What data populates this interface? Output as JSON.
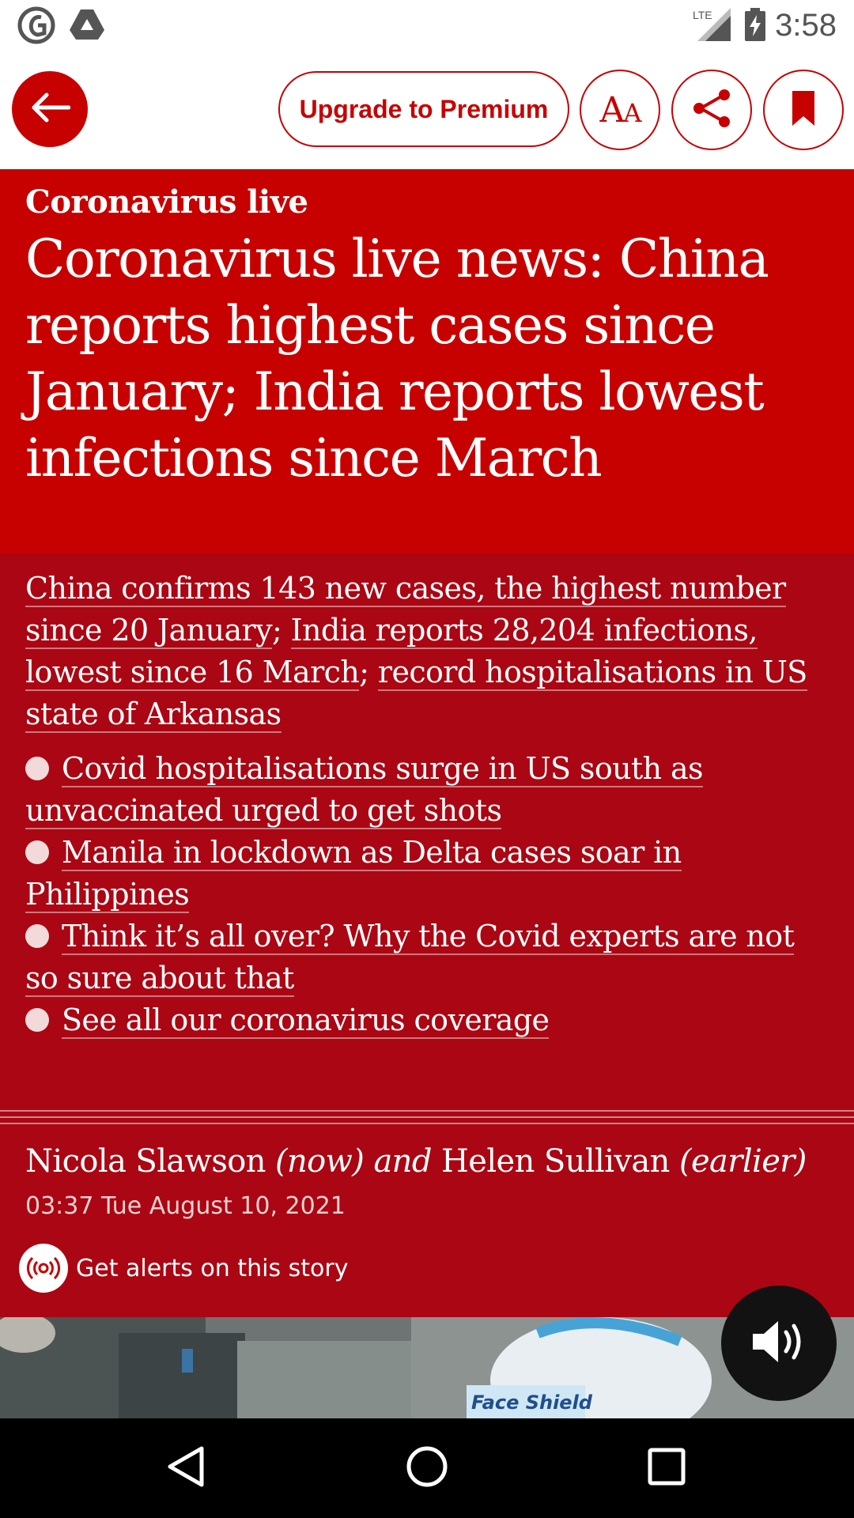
{
  "status_bar": {
    "time": "3:58",
    "network": "LTE",
    "icons": [
      "guardian-app-icon",
      "drive-icon",
      "lte-signal-icon",
      "battery-charging-icon"
    ]
  },
  "toolbar": {
    "back_icon": "arrow-left-icon",
    "premium_label": "Upgrade to Premium",
    "text_size_icon": "text-size-icon",
    "share_icon": "share-icon",
    "bookmark_icon": "bookmark-icon"
  },
  "article": {
    "kicker": "Coronavirus live",
    "headline": "Coronavirus live news: China reports highest cases since January; India reports lowest infections since March",
    "standfirst": {
      "link1": "China confirms 143 new cases, the highest number since 20 January",
      "sep1": "; ",
      "link2": "India reports 28,204 infections, lowest since 16 March",
      "sep2": "; ",
      "link3": "record hospitalisations in US state of Arkansas"
    },
    "bullets": [
      "Covid hospitalisations surge in US south as unvaccinated urged to get shots",
      "Manila in lockdown as Delta cases soar in Philippines",
      "Think it’s all over? Why the Covid experts are not so sure about that",
      "See all our coronavirus coverage"
    ],
    "byline": {
      "author1": "Nicola Slawson",
      "note1": "(now)",
      "joiner": "and",
      "author2": "Helen Sullivan",
      "note2": "(earlier)"
    },
    "dateline": "03:37 Tue August 10, 2021",
    "alerts_label": "Get alerts on this story",
    "image_caption_text": "Face Shield"
  },
  "colors": {
    "brand_red": "#c70000",
    "standfirst_red": "#ab0613",
    "white": "#ffffff",
    "nav_black": "#000000"
  },
  "nav_bar": {
    "icons": [
      "nav-back-icon",
      "nav-home-icon",
      "nav-recents-icon"
    ]
  }
}
